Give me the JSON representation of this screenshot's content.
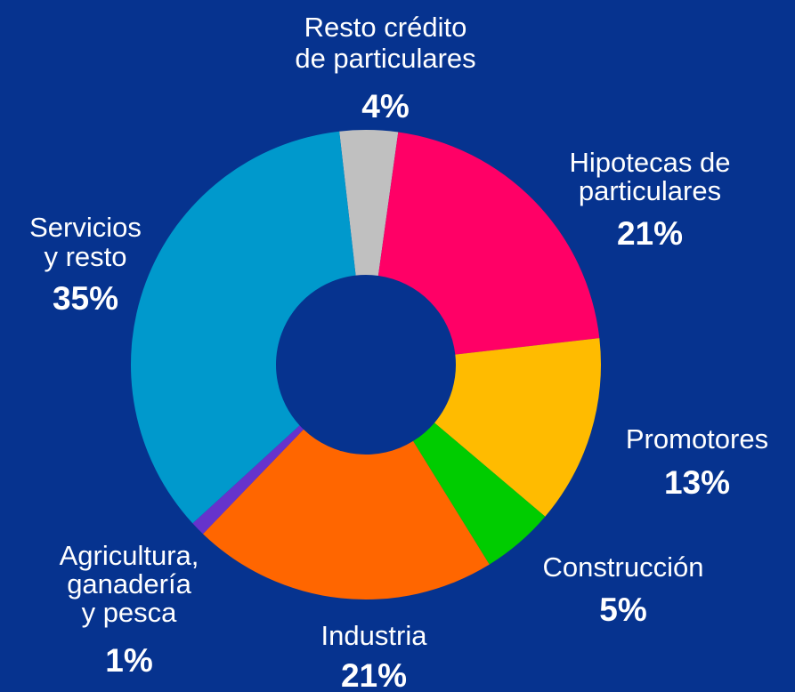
{
  "chart_data": {
    "type": "donut",
    "categories": [
      [
        "Resto crédito",
        "de particulares"
      ],
      [
        "Hipotecas de",
        "particulares"
      ],
      [
        "Promotores"
      ],
      [
        "Construcción"
      ],
      [
        "Industria"
      ],
      [
        "Agricultura,",
        "ganadería",
        "y pesca"
      ],
      [
        "Servicios",
        "y resto"
      ]
    ],
    "values": [
      4,
      21,
      13,
      5,
      21,
      1,
      35
    ],
    "value_labels": [
      "4%",
      "21%",
      "13%",
      "5%",
      "21%",
      "1%",
      "35%"
    ],
    "colors": [
      "#c0c0c0",
      "#ff0066",
      "#ffbb00",
      "#00cc00",
      "#ff6600",
      "#6633cc",
      "#0099cc"
    ]
  }
}
